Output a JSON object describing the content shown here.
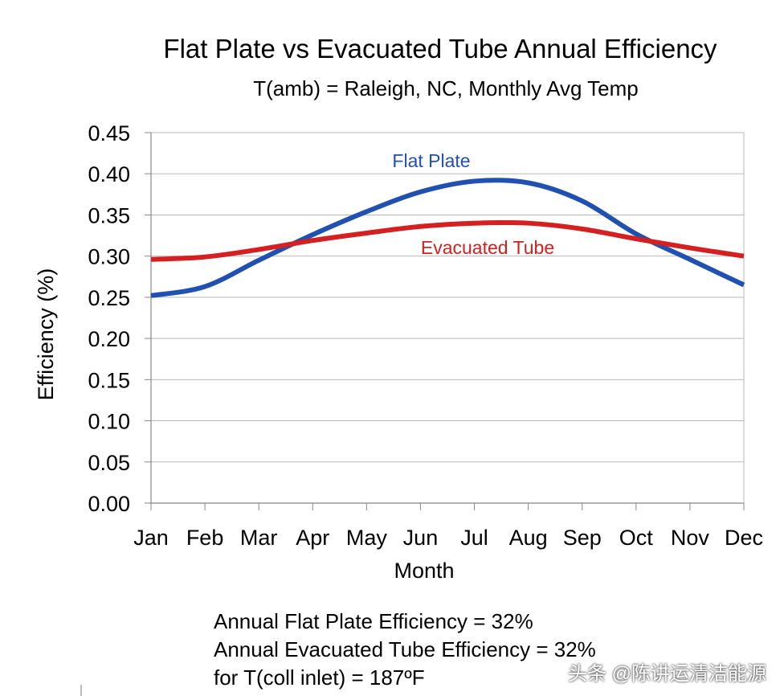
{
  "chart_data": {
    "type": "line",
    "title": "Flat Plate vs Evacuated Tube Annual Efficiency",
    "subtitle": "T(amb) = Raleigh, NC, Monthly Avg Temp",
    "xlabel": "Month",
    "ylabel": "Efficiency (%)",
    "categories": [
      "Jan",
      "Feb",
      "Mar",
      "Apr",
      "May",
      "Jun",
      "Jul",
      "Aug",
      "Sep",
      "Oct",
      "Nov",
      "Dec"
    ],
    "ylim": [
      0,
      0.45
    ],
    "yticks": [
      "0.00",
      "0.05",
      "0.10",
      "0.15",
      "0.20",
      "0.25",
      "0.30",
      "0.35",
      "0.40",
      "0.45"
    ],
    "grid": true,
    "series": [
      {
        "name": "Flat Plate",
        "color": "#2050b0",
        "values": [
          0.252,
          0.263,
          0.295,
          0.326,
          0.354,
          0.378,
          0.391,
          0.389,
          0.367,
          0.327,
          0.296,
          0.265
        ]
      },
      {
        "name": "Evacuated Tube",
        "color": "#d42020",
        "values": [
          0.296,
          0.299,
          0.308,
          0.319,
          0.328,
          0.336,
          0.34,
          0.34,
          0.333,
          0.321,
          0.31,
          0.3
        ]
      }
    ],
    "annotations": [
      "Annual Flat Plate Efficiency = 32%",
      "Annual Evacuated Tube Efficiency = 32%",
      "for T(coll inlet) = 187ºF"
    ]
  },
  "watermark": "头条 @陈讲运清洁能源"
}
